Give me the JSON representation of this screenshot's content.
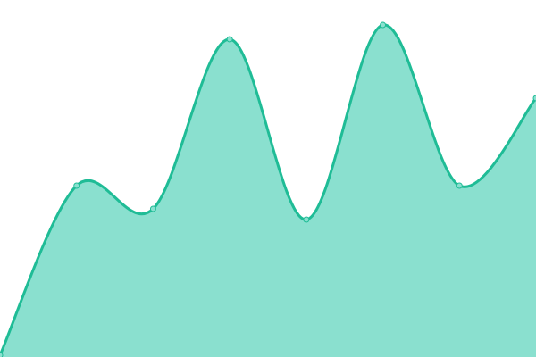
{
  "chart_data": {
    "type": "area",
    "title": "",
    "xlabel": "",
    "ylabel": "",
    "x": [
      0,
      1,
      2,
      3,
      4,
      5,
      6,
      7
    ],
    "values": [
      2,
      192,
      166,
      356,
      154,
      372,
      192,
      290
    ],
    "xlim": [
      0,
      7
    ],
    "ylim": [
      0,
      400
    ],
    "grid": false,
    "legend": "none",
    "smooth": true,
    "colors": {
      "line": "#1fbc96",
      "fill": "#8ae0cf",
      "marker": "#8ae0cf"
    }
  }
}
